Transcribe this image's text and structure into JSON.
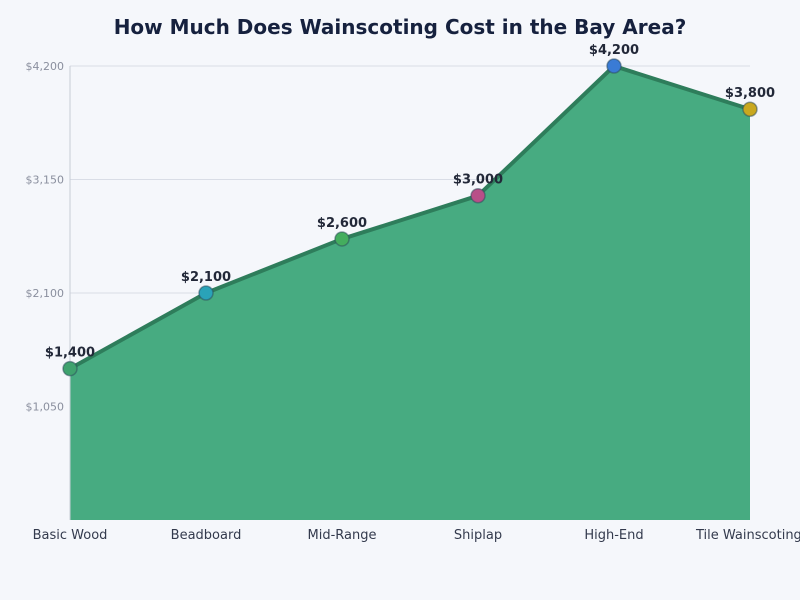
{
  "chart_data": {
    "type": "area",
    "title": "How Much Does Wainscoting Cost in the Bay Area?",
    "xlabel": "",
    "ylabel": "",
    "categories": [
      "Basic Wood",
      "Beadboard",
      "Mid-Range",
      "Shiplap",
      "High-End",
      "Tile Wainscoting"
    ],
    "values": [
      1400,
      2100,
      2600,
      3000,
      4200,
      3800
    ],
    "data_labels": [
      "$1,400",
      "$2,100",
      "$2,600",
      "$3,000",
      "$4,200",
      "$3,800"
    ],
    "yticks": [
      1050,
      2100,
      3150,
      4200
    ],
    "ytick_labels": [
      "$1,050",
      "$2,100",
      "$3,150",
      "$4,200"
    ],
    "ylim": [
      0,
      4200
    ],
    "grid": true,
    "legend": "none",
    "colors": {
      "area_fill": "#47ab81",
      "area_line": "#2e7d5b",
      "grid": "#d9dde6",
      "axis": "#c8ccd6",
      "markers": [
        "#3fa26e",
        "#2aa3b8",
        "#44ad5e",
        "#b84f88",
        "#3a7bd5",
        "#c9a81f"
      ]
    }
  }
}
